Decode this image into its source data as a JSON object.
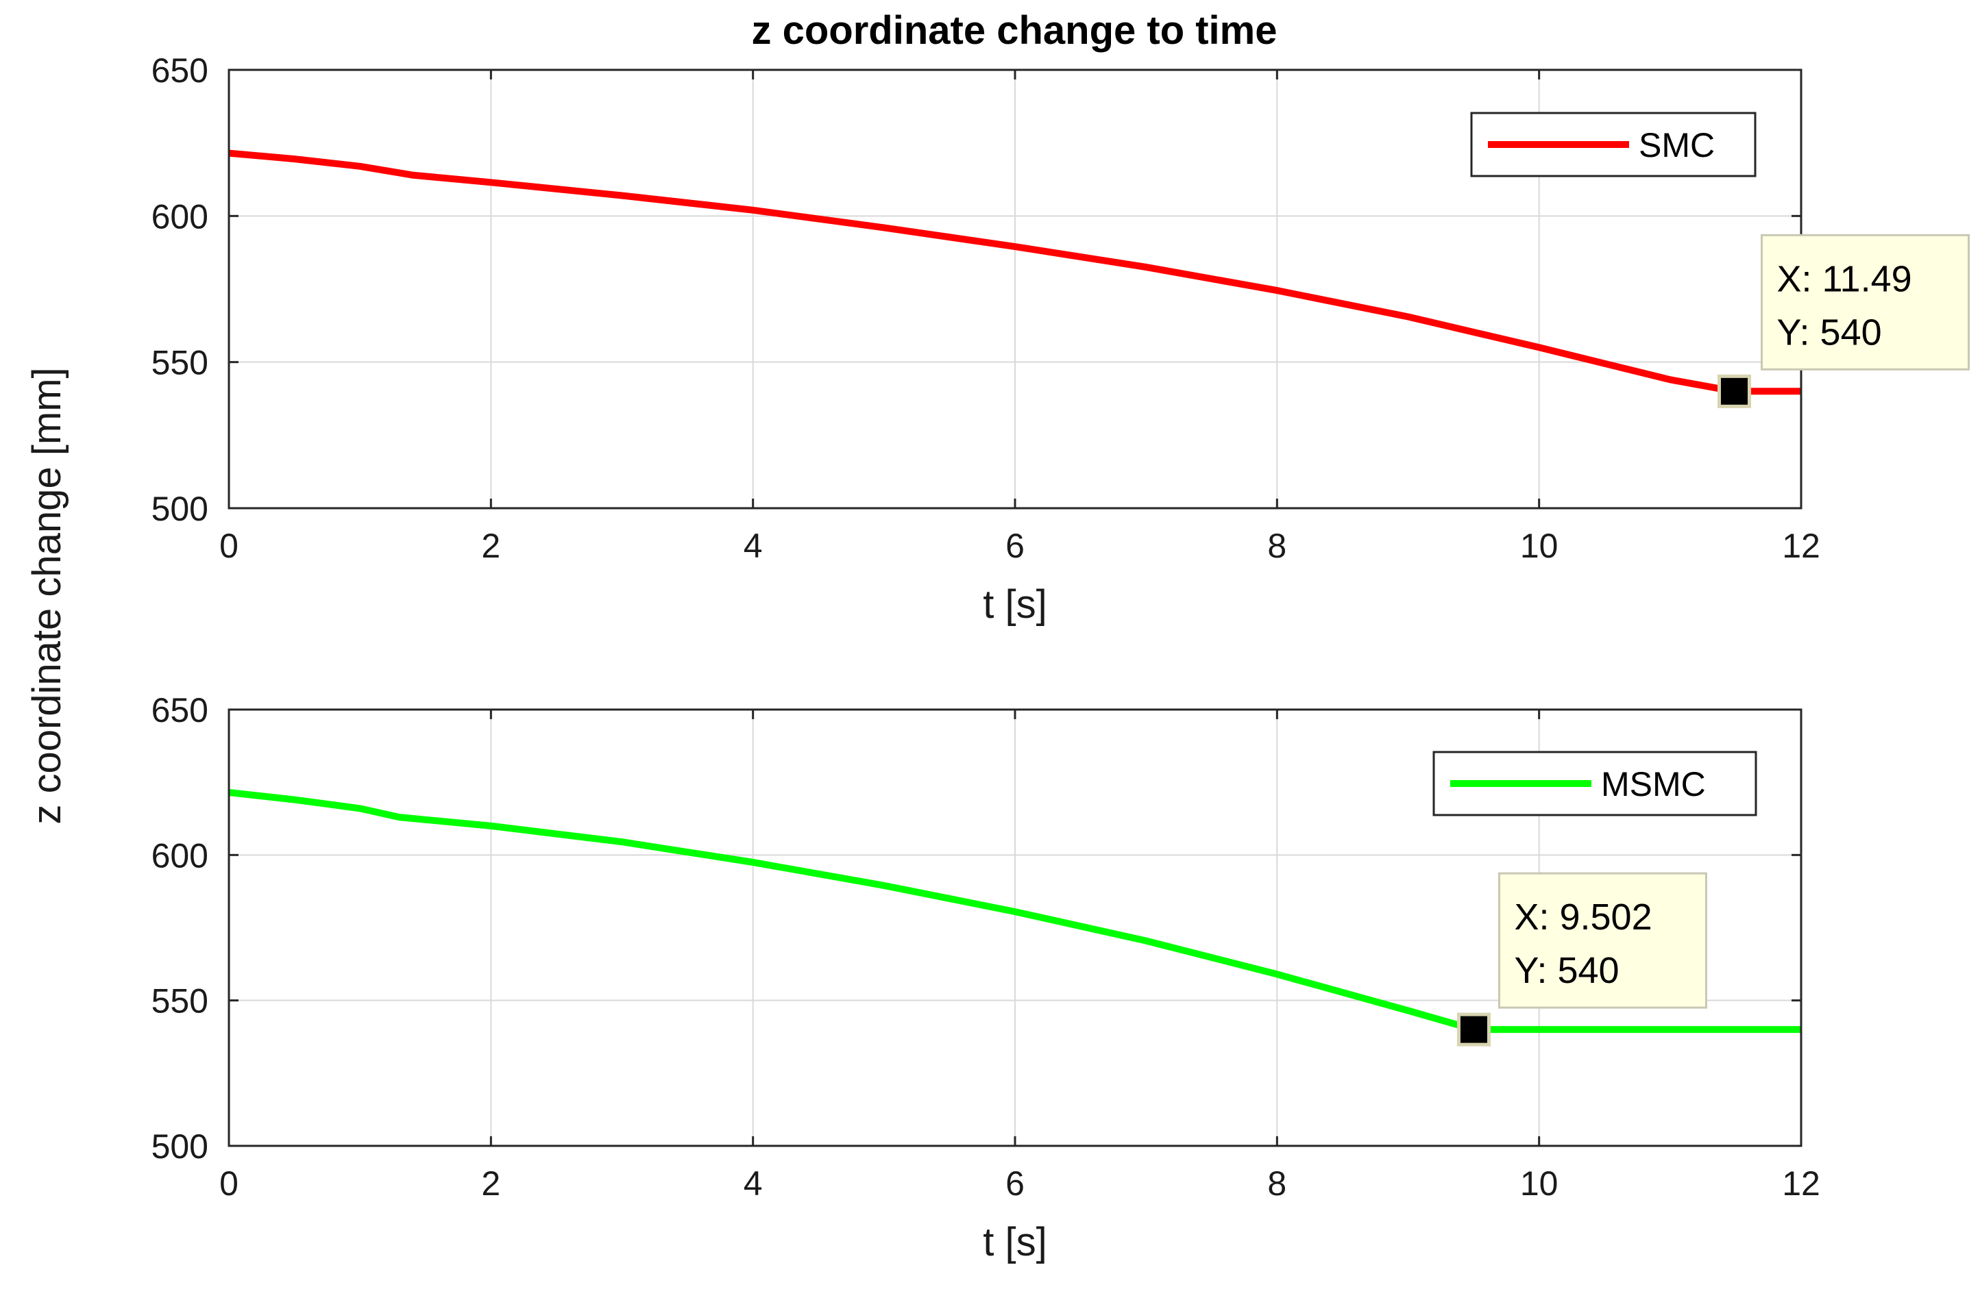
{
  "title": "z coordinate change to time",
  "shared_ylabel": "z coordinate change [mm]",
  "chart_data": [
    {
      "type": "line",
      "xlabel": "t [s]",
      "xlim": [
        0,
        12
      ],
      "ylim": [
        500,
        650
      ],
      "xticks": [
        0,
        2,
        4,
        6,
        8,
        10,
        12
      ],
      "yticks": [
        500,
        550,
        600,
        650
      ],
      "grid": true,
      "legend_placement": "top-right",
      "series": [
        {
          "name": "SMC",
          "color": "#ff0000",
          "x": [
            0,
            0.5,
            1.0,
            1.4,
            2,
            3,
            4,
            5,
            6,
            7,
            8,
            9,
            10,
            10.5,
            11,
            11.49,
            12
          ],
          "y": [
            621.5,
            619.5,
            617,
            614,
            611.5,
            607,
            602,
            596,
            589.5,
            582.5,
            574.5,
            565.5,
            555,
            549.5,
            544,
            540,
            540
          ]
        }
      ],
      "datatip": {
        "x": 11.49,
        "y": 540,
        "x_text": "X: 11.49",
        "y_text": "Y: 540"
      }
    },
    {
      "type": "line",
      "xlabel": "t [s]",
      "xlim": [
        0,
        12
      ],
      "ylim": [
        500,
        650
      ],
      "xticks": [
        0,
        2,
        4,
        6,
        8,
        10,
        12
      ],
      "yticks": [
        500,
        550,
        600,
        650
      ],
      "grid": true,
      "legend_placement": "top-right",
      "series": [
        {
          "name": "MSMC",
          "color": "#00ff00",
          "x": [
            0,
            0.5,
            1.0,
            1.3,
            2,
            3,
            4,
            5,
            6,
            7,
            8,
            9,
            9.502,
            10,
            11,
            12
          ],
          "y": [
            621.5,
            619,
            616,
            613,
            610,
            604.5,
            597.5,
            589.5,
            580.5,
            570.5,
            559,
            546.5,
            540,
            540,
            540,
            540
          ]
        }
      ],
      "datatip": {
        "x": 9.502,
        "y": 540,
        "x_text": "X: 9.502",
        "y_text": "Y: 540"
      }
    }
  ]
}
